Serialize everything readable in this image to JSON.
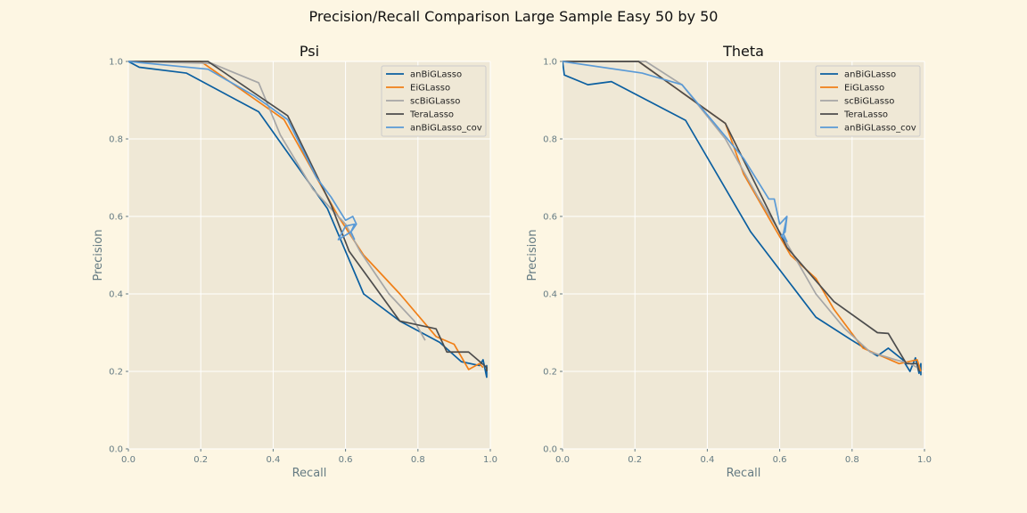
{
  "chart_data": {
    "type": "line",
    "title": "Precision/Recall Comparison Large Sample Easy 50 by 50",
    "xlim": [
      0,
      1
    ],
    "ylim": [
      0,
      1
    ],
    "xticks": [
      "0.0",
      "0.2",
      "0.4",
      "0.6",
      "0.8",
      "1.0"
    ],
    "yticks": [
      "0.0",
      "0.2",
      "0.4",
      "0.6",
      "0.8",
      "1.0"
    ],
    "grid": true,
    "legend_position": "top-right",
    "colors": {
      "anBiGLasso": "#0b5fa0",
      "EiGLasso": "#f07f17",
      "scBiGLasso": "#a6a6a6",
      "TeraLasso": "#4d4d4d",
      "anBiGLasso_cov": "#5a9ad6",
      "plot_background": "#efe8d6",
      "figure_background": "#fdf6e3"
    },
    "panels": [
      {
        "title": "Psi",
        "xlabel": "Recall",
        "ylabel": "Precision",
        "series": [
          {
            "name": "anBiGLasso",
            "x": [
              0.0,
              0.03,
              0.16,
              0.36,
              0.55,
              0.65,
              0.75,
              0.86,
              0.92,
              0.97,
              0.98,
              0.99,
              0.99,
              0.99
            ],
            "y": [
              1.0,
              0.985,
              0.97,
              0.87,
              0.62,
              0.4,
              0.33,
              0.275,
              0.225,
              0.215,
              0.23,
              0.185,
              0.215,
              0.2
            ]
          },
          {
            "name": "EiGLasso",
            "x": [
              0.0,
              0.2,
              0.43,
              0.58,
              0.65,
              0.75,
              0.85,
              0.9,
              0.94,
              0.97,
              0.98
            ],
            "y": [
              1.0,
              1.0,
              0.85,
              0.6,
              0.5,
              0.4,
              0.29,
              0.27,
              0.205,
              0.22,
              0.21
            ]
          },
          {
            "name": "scBiGLasso",
            "x": [
              0.0,
              0.23,
              0.36,
              0.42,
              0.51,
              0.6,
              0.64,
              0.72,
              0.79,
              0.82
            ],
            "y": [
              1.0,
              0.995,
              0.945,
              0.81,
              0.67,
              0.58,
              0.51,
              0.4,
              0.33,
              0.28
            ]
          },
          {
            "name": "TeraLasso",
            "x": [
              0.0,
              0.22,
              0.44,
              0.56,
              0.61,
              0.75,
              0.85,
              0.88,
              0.94,
              0.99,
              0.99
            ],
            "y": [
              1.0,
              1.0,
              0.86,
              0.63,
              0.51,
              0.33,
              0.31,
              0.25,
              0.25,
              0.21,
              0.2
            ]
          },
          {
            "name": "anBiGLasso_cov",
            "x": [
              0.0,
              0.22,
              0.35,
              0.44,
              0.52,
              0.56,
              0.6,
              0.62,
              0.63,
              0.615,
              0.58,
              0.6,
              0.625,
              0.615,
              0.625
            ],
            "y": [
              1.0,
              0.98,
              0.91,
              0.85,
              0.7,
              0.65,
              0.59,
              0.6,
              0.58,
              0.56,
              0.54,
              0.575,
              0.58,
              0.56,
              0.54
            ]
          }
        ]
      },
      {
        "title": "Theta",
        "xlabel": "Recall",
        "ylabel": "Precision",
        "series": [
          {
            "name": "anBiGLasso",
            "x": [
              0.0,
              0.005,
              0.07,
              0.135,
              0.34,
              0.52,
              0.7,
              0.8,
              0.87,
              0.9,
              0.94,
              0.96,
              0.975,
              0.985,
              0.99,
              0.99
            ],
            "y": [
              1.0,
              0.965,
              0.94,
              0.948,
              0.848,
              0.56,
              0.34,
              0.28,
              0.24,
              0.26,
              0.23,
              0.2,
              0.235,
              0.195,
              0.22,
              0.19
            ]
          },
          {
            "name": "EiGLasso",
            "x": [
              0.0,
              0.21,
              0.45,
              0.5,
              0.58,
              0.63,
              0.7,
              0.75,
              0.83,
              0.88,
              0.93,
              0.98,
              0.99
            ],
            "y": [
              1.0,
              1.0,
              0.84,
              0.71,
              0.58,
              0.5,
              0.44,
              0.36,
              0.26,
              0.24,
              0.22,
              0.23,
              0.2
            ]
          },
          {
            "name": "scBiGLasso",
            "x": [
              0.0,
              0.23,
              0.33,
              0.45,
              0.54,
              0.62,
              0.7,
              0.78,
              0.85,
              0.92,
              0.96,
              0.98
            ],
            "y": [
              1.0,
              1.0,
              0.94,
              0.8,
              0.65,
              0.53,
              0.4,
              0.31,
              0.25,
              0.23,
              0.22,
              0.21
            ]
          },
          {
            "name": "TeraLasso",
            "x": [
              0.0,
              0.21,
              0.45,
              0.62,
              0.75,
              0.87,
              0.9,
              0.95,
              0.98,
              0.985
            ],
            "y": [
              1.0,
              1.0,
              0.84,
              0.52,
              0.38,
              0.3,
              0.298,
              0.22,
              0.22,
              0.2
            ]
          },
          {
            "name": "anBiGLasso_cov",
            "x": [
              0.0,
              0.22,
              0.33,
              0.42,
              0.5,
              0.57,
              0.585,
              0.6,
              0.62,
              0.615,
              0.605,
              0.62,
              0.61,
              0.62
            ],
            "y": [
              1.0,
              0.97,
              0.94,
              0.84,
              0.75,
              0.645,
              0.645,
              0.58,
              0.6,
              0.56,
              0.55,
              0.535,
              0.555,
              0.6
            ]
          }
        ]
      }
    ]
  }
}
